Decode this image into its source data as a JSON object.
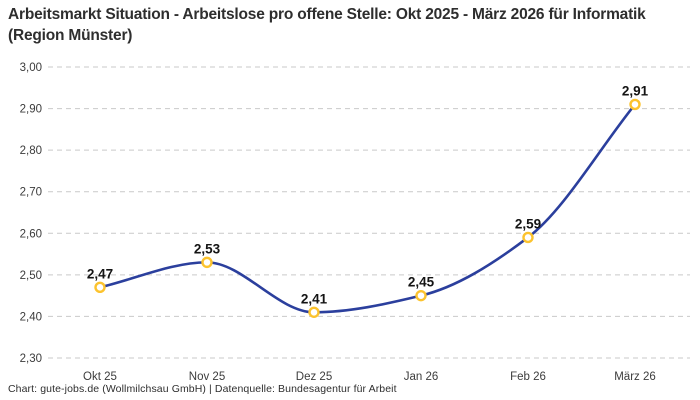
{
  "header": {
    "title": "Arbeitsmarkt Situation - Arbeitslose pro offene Stelle: Okt 2025 - März 2026 für Informatik (Region Münster)"
  },
  "chart_data": {
    "type": "line",
    "title": "Arbeitsmarkt Situation - Arbeitslose pro offene Stelle: Okt 2025 - März 2026 für Informatik (Region Münster)",
    "categories": [
      "Okt 25",
      "Nov 25",
      "Dez 25",
      "Jan 26",
      "Feb 26",
      "März 26"
    ],
    "values": [
      2.47,
      2.53,
      2.41,
      2.45,
      2.59,
      2.91
    ],
    "value_labels": [
      "2,47",
      "2,53",
      "2,41",
      "2,45",
      "2,59",
      "2,91"
    ],
    "ylim": [
      2.3,
      3.0
    ],
    "ytick_step": 0.1,
    "ytick_labels": [
      "2,30",
      "2,40",
      "2,50",
      "2,60",
      "2,70",
      "2,80",
      "2,90",
      "3,00"
    ],
    "xlabel": "",
    "ylabel": "",
    "grid": "horizontal-dashed",
    "legend": "none",
    "curve": "smooth-monotone",
    "colors": {
      "line": "#2b3f9d",
      "marker_fill": "#ffffff",
      "marker_stroke": "#fcc32e",
      "grid": "#c9c9c9",
      "point_label": "#141414",
      "tick_label": "#3c3c3c"
    }
  },
  "footer": {
    "text": "Chart: gute-jobs.de (Wollmilchsau GmbH) | Datenquelle: Bundesagentur für Arbeit"
  }
}
